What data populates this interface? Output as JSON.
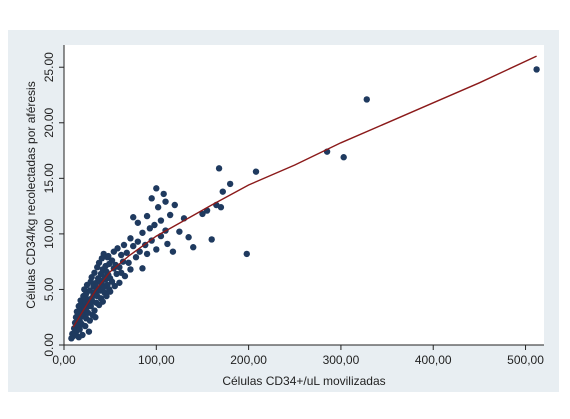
{
  "chart_data": {
    "type": "scatter",
    "title": "",
    "xlabel": "Células CD34+/uL movilizadas",
    "ylabel": "Células CD34/kg recolectadas por aféresis",
    "xlim": [
      0,
      520
    ],
    "ylim": [
      0,
      27
    ],
    "x_ticks": [
      0,
      100,
      200,
      300,
      400,
      500
    ],
    "y_ticks": [
      0,
      5,
      10,
      15,
      20,
      25
    ],
    "x_tick_labels": [
      "0,00",
      "100,00",
      "200,00",
      "300,00",
      "400,00",
      "500,00"
    ],
    "y_tick_labels": [
      "0.00",
      "5.00",
      "10.00",
      "15.00",
      "20.00",
      "25.00"
    ],
    "grid": false,
    "legend": "none",
    "colors": {
      "points": "#1f3a5f",
      "fit_line": "#8b1a1a",
      "frame_bg": "#e8eef2",
      "plot_bg": "#ffffff"
    },
    "series": [
      {
        "kind": "points",
        "points": [
          [
            8,
            0.6
          ],
          [
            9,
            1.0
          ],
          [
            10,
            0.8
          ],
          [
            11,
            1.5
          ],
          [
            12,
            1.1
          ],
          [
            12,
            2.0
          ],
          [
            13,
            0.9
          ],
          [
            13,
            2.5
          ],
          [
            14,
            1.3
          ],
          [
            14,
            3.0
          ],
          [
            15,
            1.8
          ],
          [
            15,
            2.7
          ],
          [
            16,
            0.7
          ],
          [
            16,
            3.5
          ],
          [
            17,
            2.2
          ],
          [
            17,
            1.4
          ],
          [
            18,
            3.1
          ],
          [
            18,
            4.0
          ],
          [
            19,
            2.6
          ],
          [
            19,
            1.9
          ],
          [
            20,
            3.6
          ],
          [
            20,
            0.9
          ],
          [
            21,
            4.4
          ],
          [
            21,
            2.8
          ],
          [
            22,
            3.2
          ],
          [
            22,
            5.0
          ],
          [
            23,
            1.7
          ],
          [
            23,
            3.9
          ],
          [
            24,
            4.6
          ],
          [
            24,
            2.4
          ],
          [
            25,
            3.4
          ],
          [
            25,
            5.4
          ],
          [
            26,
            2.9
          ],
          [
            26,
            4.1
          ],
          [
            27,
            3.7
          ],
          [
            27,
            1.2
          ],
          [
            28,
            4.9
          ],
          [
            28,
            2.2
          ],
          [
            29,
            5.7
          ],
          [
            29,
            3.5
          ],
          [
            30,
            4.2
          ],
          [
            30,
            6.1
          ],
          [
            31,
            2.7
          ],
          [
            31,
            3.9
          ],
          [
            32,
            5.3
          ],
          [
            32,
            4.5
          ],
          [
            33,
            3.1
          ],
          [
            33,
            6.5
          ],
          [
            34,
            4.8
          ],
          [
            34,
            2.5
          ],
          [
            35,
            5.6
          ],
          [
            35,
            3.8
          ],
          [
            36,
            7.0
          ],
          [
            36,
            4.4
          ],
          [
            37,
            5.1
          ],
          [
            37,
            6.0
          ],
          [
            38,
            3.6
          ],
          [
            38,
            7.4
          ],
          [
            39,
            4.9
          ],
          [
            39,
            5.8
          ],
          [
            40,
            6.4
          ],
          [
            40,
            4.2
          ],
          [
            41,
            7.8
          ],
          [
            41,
            5.5
          ],
          [
            42,
            3.9
          ],
          [
            42,
            6.8
          ],
          [
            43,
            5.2
          ],
          [
            43,
            8.2
          ],
          [
            44,
            6.1
          ],
          [
            44,
            4.7
          ],
          [
            45,
            7.1
          ],
          [
            45,
            5.9
          ],
          [
            46,
            6.6
          ],
          [
            46,
            4.4
          ],
          [
            47,
            7.9
          ],
          [
            47,
            5.4
          ],
          [
            48,
            6.3
          ],
          [
            48,
            8.0
          ],
          [
            49,
            5.0
          ],
          [
            49,
            7.3
          ],
          [
            50,
            6.0
          ],
          [
            50,
            4.8
          ],
          [
            52,
            7.6
          ],
          [
            52,
            5.7
          ],
          [
            54,
            6.9
          ],
          [
            54,
            8.4
          ],
          [
            55,
            5.3
          ],
          [
            56,
            7.2
          ],
          [
            57,
            6.4
          ],
          [
            58,
            8.7
          ],
          [
            60,
            7.0
          ],
          [
            60,
            5.6
          ],
          [
            62,
            8.1
          ],
          [
            62,
            6.5
          ],
          [
            64,
            7.5
          ],
          [
            65,
            9.0
          ],
          [
            66,
            6.2
          ],
          [
            68,
            8.3
          ],
          [
            70,
            7.4
          ],
          [
            72,
            9.6
          ],
          [
            72,
            6.8
          ],
          [
            75,
            8.9
          ],
          [
            75,
            11.5
          ],
          [
            78,
            7.9
          ],
          [
            80,
            9.3
          ],
          [
            80,
            11.0
          ],
          [
            82,
            8.4
          ],
          [
            85,
            10.1
          ],
          [
            85,
            6.9
          ],
          [
            88,
            9.0
          ],
          [
            90,
            11.6
          ],
          [
            90,
            8.2
          ],
          [
            93,
            10.5
          ],
          [
            95,
            9.4
          ],
          [
            95,
            13.2
          ],
          [
            98,
            10.8
          ],
          [
            100,
            14.1
          ],
          [
            100,
            8.6
          ],
          [
            102,
            12.4
          ],
          [
            105,
            9.8
          ],
          [
            105,
            11.2
          ],
          [
            108,
            13.6
          ],
          [
            110,
            10.3
          ],
          [
            110,
            12.9
          ],
          [
            112,
            9.1
          ],
          [
            115,
            11.7
          ],
          [
            118,
            8.4
          ],
          [
            120,
            12.6
          ],
          [
            125,
            10.2
          ],
          [
            130,
            11.4
          ],
          [
            135,
            9.7
          ],
          [
            140,
            8.8
          ],
          [
            150,
            11.8
          ],
          [
            155,
            12.1
          ],
          [
            160,
            9.5
          ],
          [
            165,
            12.6
          ],
          [
            168,
            15.9
          ],
          [
            170,
            12.4
          ],
          [
            172,
            13.8
          ],
          [
            180,
            14.5
          ],
          [
            198,
            8.2
          ],
          [
            208,
            15.6
          ],
          [
            285,
            17.4
          ],
          [
            303,
            16.9
          ],
          [
            328,
            22.1
          ],
          [
            512,
            24.8
          ]
        ]
      },
      {
        "kind": "line",
        "points": [
          [
            10,
            1.6
          ],
          [
            20,
            3.0
          ],
          [
            35,
            5.0
          ],
          [
            50,
            6.6
          ],
          [
            70,
            8.0
          ],
          [
            100,
            9.8
          ],
          [
            130,
            11.2
          ],
          [
            160,
            12.6
          ],
          [
            200,
            14.4
          ],
          [
            250,
            16.2
          ],
          [
            300,
            18.2
          ],
          [
            350,
            20.0
          ],
          [
            400,
            21.8
          ],
          [
            450,
            23.6
          ],
          [
            512,
            26.0
          ]
        ]
      }
    ]
  }
}
